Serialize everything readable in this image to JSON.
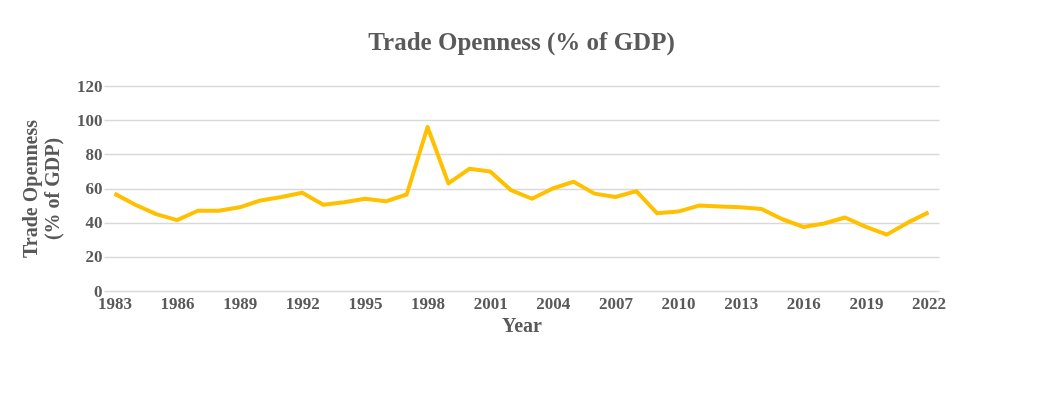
{
  "chart_data": {
    "type": "line",
    "title": "Trade Openness (% of GDP)",
    "xlabel": "Year",
    "ylabel": "Trade Openness\n(% of GDP)",
    "categories": [
      "1983",
      null,
      null,
      "1986",
      null,
      null,
      "1989",
      null,
      null,
      "1992",
      null,
      null,
      "1995",
      null,
      null,
      "1998",
      null,
      null,
      "2001",
      null,
      null,
      "2004",
      null,
      null,
      "2007",
      null,
      null,
      "2010",
      null,
      null,
      "2013",
      null,
      null,
      "2016",
      null,
      null,
      "2019",
      null,
      null,
      "2022"
    ],
    "series": [
      {
        "color": "#ffc000",
        "values": [
          57,
          50.5,
          45,
          41.5,
          47,
          47,
          49,
          53,
          55,
          57.5,
          50.5,
          52,
          54,
          52.5,
          56.5,
          96,
          63,
          71.5,
          70,
          59,
          54,
          60,
          64,
          57,
          55,
          58.5,
          45.5,
          46.5,
          50,
          49.5,
          49,
          48,
          42,
          37.5,
          39.5,
          43,
          37.5,
          33,
          40,
          46
        ]
      }
    ],
    "ylim": [
      0,
      120
    ],
    "yticks": [
      0,
      20,
      40,
      60,
      80,
      100,
      120
    ],
    "grid": "y",
    "legend": false,
    "marker": "none",
    "line_style": "solid"
  }
}
